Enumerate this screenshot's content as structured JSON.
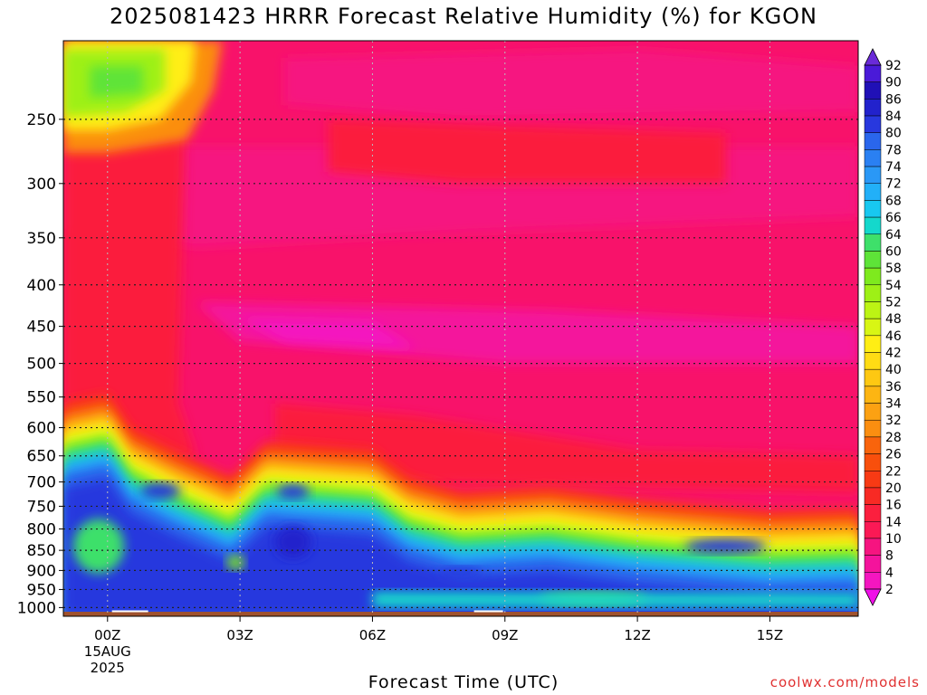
{
  "title": "2025081423 HRRR Forecast Relative Humidity (%) for KGON",
  "credit": "coolwx.com/models",
  "chart_data": {
    "type": "heatmap",
    "title": "2025081423 HRRR Forecast Relative Humidity (%) for KGON",
    "xlabel": "Forecast Time (UTC)",
    "ylabel": "",
    "x_ticks": [
      "00Z",
      "03Z",
      "06Z",
      "09Z",
      "12Z",
      "15Z"
    ],
    "x_first_tick_extra": [
      "15AUG",
      "2025"
    ],
    "x_hours": [
      0,
      3,
      6,
      9,
      12,
      15
    ],
    "xlim_hours": [
      -1,
      17
    ],
    "y_ticks": [
      250,
      300,
      350,
      400,
      450,
      500,
      550,
      600,
      650,
      700,
      750,
      800,
      850,
      900,
      950,
      1000
    ],
    "ylim_hpa": [
      1025,
      200
    ],
    "y_scale": "log-pressure",
    "grid": true,
    "colorbar_levels": [
      2,
      4,
      8,
      10,
      14,
      16,
      20,
      22,
      26,
      28,
      32,
      34,
      36,
      40,
      42,
      46,
      48,
      52,
      54,
      58,
      60,
      64,
      66,
      68,
      72,
      74,
      78,
      80,
      84,
      86,
      90,
      92
    ],
    "colorbar_colors": [
      "#f010e8",
      "#f416c0",
      "#f4139c",
      "#f61480",
      "#f8126a",
      "#fb1955",
      "#fb1f3e",
      "#f82a24",
      "#f83a14",
      "#f84f0c",
      "#f9640c",
      "#fa7a0e",
      "#fb8e10",
      "#fca112",
      "#fdb512",
      "#fec812",
      "#ffdc14",
      "#ffee14",
      "#f4fa14",
      "#d8f614",
      "#bcf414",
      "#9ef016",
      "#7eea1e",
      "#5ee438",
      "#3ee06a",
      "#22dca0",
      "#14d8cc",
      "#18c8f0",
      "#22b0f8",
      "#2a98f6",
      "#2a80f2",
      "#2a66ec",
      "#2a4ee6",
      "#2838de",
      "#2222cc",
      "#2010b6",
      "#4a1ad8",
      "#7030f0"
    ],
    "annotations": {
      "low_level_moist_layer": "RH 60-90% from ~1000 to ~700 hPa, top descending to ~780 hPa after 07Z",
      "upper_dry": "RH 2-20% above 650 hPa",
      "upper_moist_pocket": "RH 40-60% near 200-260 hPa before 02Z"
    }
  }
}
